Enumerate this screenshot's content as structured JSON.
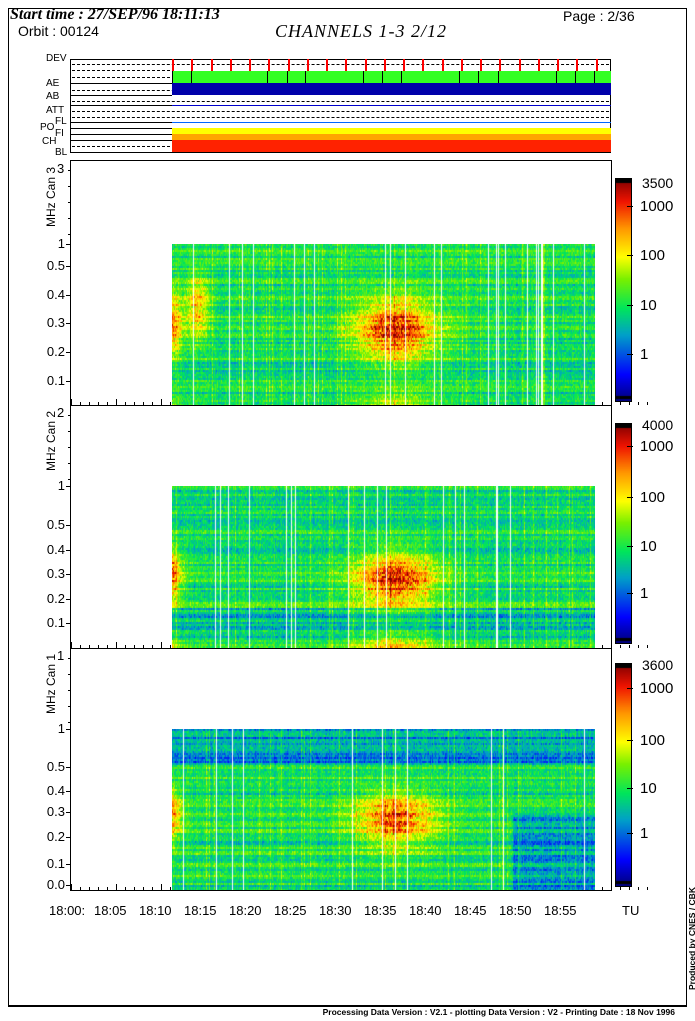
{
  "header": {
    "start_time": "Start time : 27/SEP/96 18:11:13",
    "orbit": "Orbit : 00124",
    "title": "CHANNELS 1-3  2/12",
    "page": "Page :  2/36"
  },
  "status_panel": {
    "labels": [
      "DEV",
      "AE",
      "AB",
      "ATT",
      "FL",
      "PO",
      "FI",
      "CH",
      "BL"
    ],
    "colors": {
      "dev_marks": "#ff0000",
      "dev_band": "#33ff22",
      "ae": "#0000aa",
      "ab": "#0000cc",
      "fl": "#0066ff",
      "po": "#ffff00",
      "fi": "#ffa500",
      "ch": "#ff2200"
    }
  },
  "chart_data": [
    {
      "type": "heatmap",
      "ylabel": "MHz Can 3",
      "top_label": "3",
      "yticks": [
        "1",
        "0.5",
        "0.4",
        "0.3",
        "0.2",
        "0.1"
      ],
      "colorbar": {
        "scale": "log",
        "max_label": "3500",
        "ticks": [
          "1000",
          "100",
          "10",
          "1"
        ]
      },
      "features": [
        {
          "time": "18:36",
          "freq_mhz": 0.28,
          "level": 1000
        },
        {
          "time": "18:11",
          "freq_mhz": 0.3,
          "level": 500
        },
        {
          "time": "18:14",
          "freq_mhz": 0.36,
          "level": 200
        }
      ]
    },
    {
      "type": "heatmap",
      "ylabel": "MHz Can 2",
      "top_label": "2",
      "yticks": [
        "1",
        "0.5",
        "0.4",
        "0.3",
        "0.2",
        "0.1"
      ],
      "colorbar": {
        "scale": "log",
        "max_label": "4000",
        "ticks": [
          "1000",
          "100",
          "10",
          "1"
        ]
      },
      "features": [
        {
          "time": "18:36",
          "freq_mhz": 0.28,
          "level": 1000
        },
        {
          "time": "18:11",
          "freq_mhz": 0.3,
          "level": 500
        }
      ]
    },
    {
      "type": "heatmap",
      "ylabel": "MHz Can 1",
      "top_label": "1",
      "yticks": [
        "1",
        "0.5",
        "0.4",
        "0.3",
        "0.2",
        "0.1",
        "0.0"
      ],
      "colorbar": {
        "scale": "log",
        "max_label": "3600",
        "ticks": [
          "1000",
          "100",
          "10",
          "1"
        ]
      },
      "features": [
        {
          "time": "18:36",
          "freq_mhz": 0.28,
          "level": 500
        },
        {
          "time": "18:11",
          "freq_mhz": 0.3,
          "level": 300
        }
      ]
    }
  ],
  "xaxis": {
    "ticks": [
      "18:00:",
      "18:05",
      "18:10",
      "18:15",
      "18:20",
      "18:25",
      "18:30",
      "18:35",
      "18:40",
      "18:45",
      "18:50",
      "18:55"
    ],
    "unit": "TU",
    "data_start": "18:11:13"
  },
  "footer": {
    "versions": "Processing Data Version : V2.1 - plotting Data Version : V2 - Printing Date : 18 Nov 1996",
    "credit": "Produced by CNES / CBK"
  }
}
